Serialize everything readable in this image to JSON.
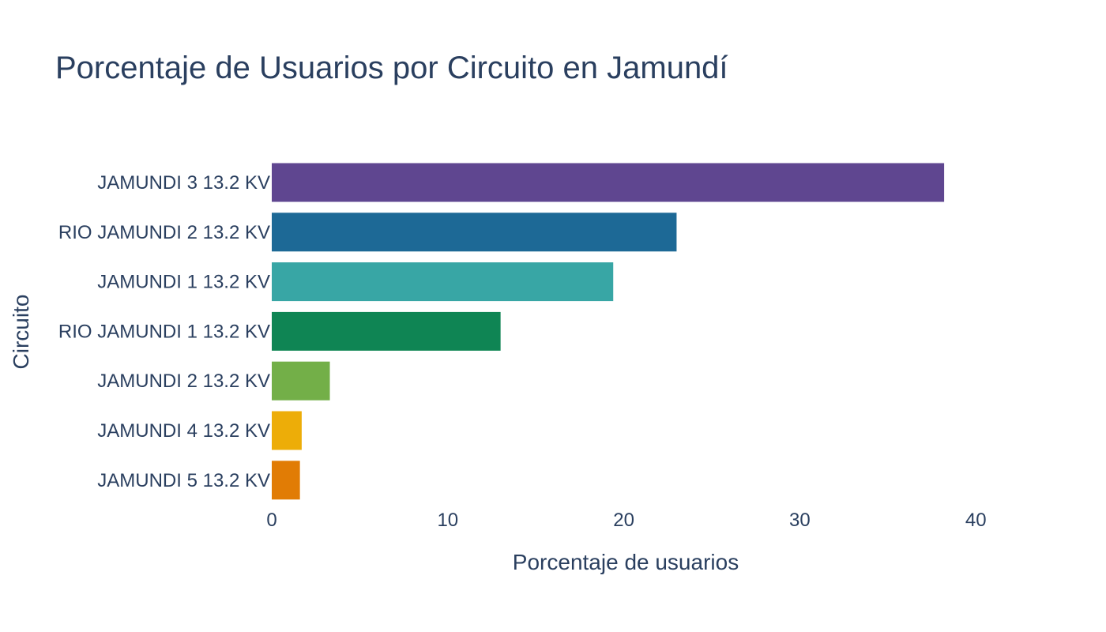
{
  "chart_data": {
    "type": "bar",
    "orientation": "horizontal",
    "title": "Porcentaje de Usuarios por Circuito en Jamundí",
    "xlabel": "Porcentaje de usuarios",
    "ylabel": "Circuito",
    "xlim": [
      0,
      45
    ],
    "xticks": [
      0,
      10,
      20,
      30,
      40
    ],
    "grid": false,
    "categories": [
      "JAMUNDI 3 13.2 KV",
      "RIO JAMUNDI 2 13.2 KV",
      "JAMUNDI 1 13.2 KV",
      "RIO JAMUNDI 1 13.2 KV",
      "JAMUNDI 2 13.2 KV",
      "JAMUNDI 4 13.2 KV",
      "JAMUNDI 5 13.2 KV"
    ],
    "values": [
      38.2,
      23.0,
      19.4,
      13.0,
      3.3,
      1.7,
      1.6
    ],
    "colors": [
      "#5f4690",
      "#1d6996",
      "#38a6a5",
      "#0f8554",
      "#73af48",
      "#edad08",
      "#e17c05"
    ]
  }
}
